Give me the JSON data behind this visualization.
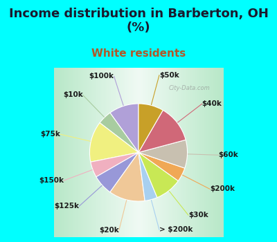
{
  "title": "Income distribution in Barberton, OH\n(%)",
  "subtitle": "White residents",
  "fig_bg_color": "#00FFFF",
  "chart_bg_color": "#e0f5e8",
  "labels": [
    "$100k",
    "$10k",
    "$75k",
    "$150k",
    "$125k",
    "$20k",
    "> $200k",
    "$30k",
    "$200k",
    "$60k",
    "$40k",
    "$50k"
  ],
  "values": [
    9.5,
    4.5,
    13.0,
    5.0,
    6.5,
    11.5,
    4.0,
    8.5,
    4.5,
    9.0,
    12.0,
    8.0
  ],
  "colors": [
    "#b0a0d8",
    "#a8cca0",
    "#f0f080",
    "#f0b0c0",
    "#9898d8",
    "#f0c898",
    "#a8d0f0",
    "#c8e855",
    "#f0a855",
    "#c8c0b0",
    "#d06878",
    "#c8a028"
  ],
  "title_color": "#1a1a2e",
  "subtitle_color": "#b05828",
  "title_fontsize": 13,
  "subtitle_fontsize": 11,
  "label_fontsize": 7.5,
  "watermark": "City-Data.com"
}
